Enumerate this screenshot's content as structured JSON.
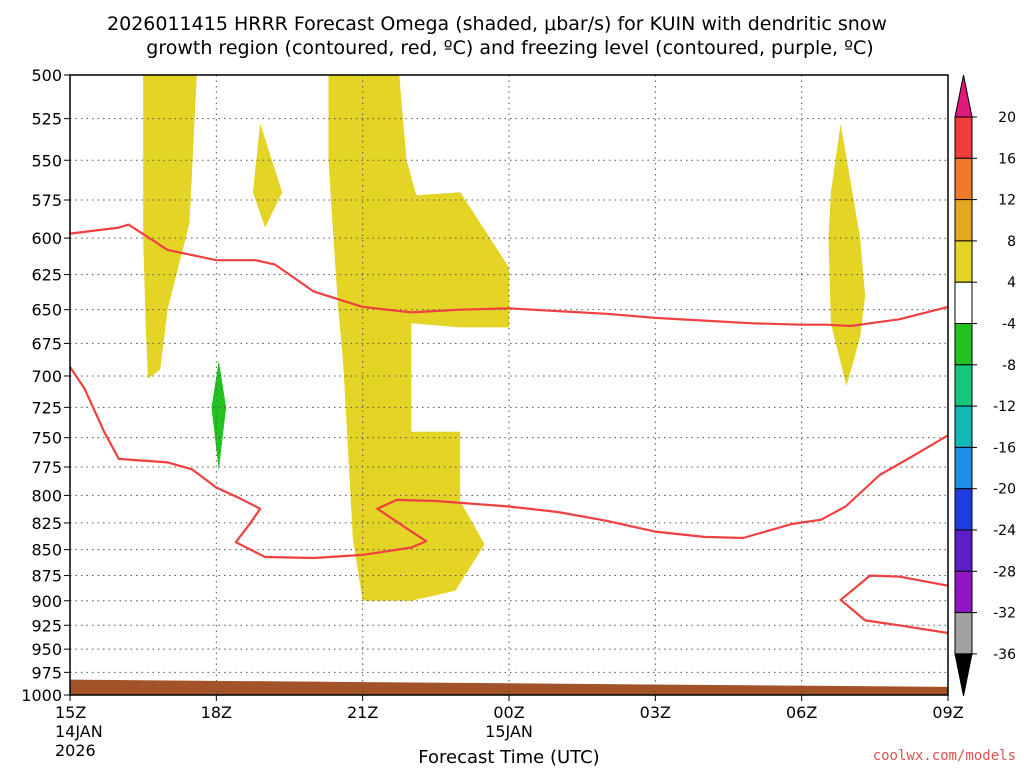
{
  "chart_data": {
    "type": "contour",
    "title_line1": "2026011415 HRRR Forecast Omega (shaded, μbar/s) for KUIN with dendritic snow",
    "title_line2": "growth region (contoured, red, ºC) and freezing level (contoured, purple, ºC)",
    "xlabel": "Forecast Time (UTC)",
    "credit": "coolwx.com/models",
    "x_range_hours": [
      0,
      18
    ],
    "x_ticks": [
      {
        "hour": 0,
        "label": "15Z",
        "sub1": "14JAN",
        "sub2": "2026"
      },
      {
        "hour": 3,
        "label": "18Z",
        "sub1": "",
        "sub2": ""
      },
      {
        "hour": 6,
        "label": "21Z",
        "sub1": "",
        "sub2": ""
      },
      {
        "hour": 9,
        "label": "00Z",
        "sub1": "15JAN",
        "sub2": ""
      },
      {
        "hour": 12,
        "label": "03Z",
        "sub1": "",
        "sub2": ""
      },
      {
        "hour": 15,
        "label": "06Z",
        "sub1": "",
        "sub2": ""
      },
      {
        "hour": 18,
        "label": "09Z",
        "sub1": "",
        "sub2": ""
      }
    ],
    "y_range_hpa": [
      500,
      1000
    ],
    "y_ticks": [
      500,
      525,
      550,
      575,
      600,
      625,
      650,
      675,
      700,
      725,
      750,
      775,
      800,
      825,
      850,
      875,
      900,
      925,
      950,
      975,
      1000
    ],
    "grid": true,
    "colorbar": {
      "labels": [
        "20",
        "16",
        "12",
        "8",
        "4",
        "-4",
        "-8",
        "-12",
        "-16",
        "-20",
        "-24",
        "-28",
        "-32",
        "-36"
      ],
      "bins": [
        "#f23b3b",
        "#f07a2a",
        "#e6a81f",
        "#e3d425",
        "#ffffff",
        "#22c31e",
        "#14c87c",
        "#12b8b8",
        "#1e8fe6",
        "#1f3ce0",
        "#5a20c8",
        "#8f18c4",
        "#a2a2a2"
      ],
      "top_color": "#e0197a",
      "bottom_color": "#000000"
    },
    "omega_regions": [
      {
        "color": "#e3d425",
        "value_range": [
          4,
          8
        ],
        "points": [
          [
            1.6,
            500
          ],
          [
            2.6,
            500
          ],
          [
            2.45,
            590
          ],
          [
            2.0,
            650
          ],
          [
            1.85,
            695
          ],
          [
            1.6,
            702
          ],
          [
            1.55,
            660
          ],
          [
            1.5,
            600
          ],
          [
            1.5,
            500
          ]
        ]
      },
      {
        "color": "#e3d425",
        "value_range": [
          4,
          8
        ],
        "points": [
          [
            3.9,
            528
          ],
          [
            4.35,
            570
          ],
          [
            4.0,
            593
          ],
          [
            3.75,
            570
          ]
        ]
      },
      {
        "color": "#e3d425",
        "value_range": [
          4,
          8
        ],
        "points": [
          [
            5.9,
            500
          ],
          [
            6.75,
            500
          ],
          [
            6.9,
            550
          ],
          [
            7.1,
            572
          ],
          [
            8.0,
            570
          ],
          [
            9.0,
            620
          ],
          [
            9.0,
            663
          ],
          [
            8.0,
            663
          ],
          [
            7.0,
            660
          ],
          [
            7.0,
            745
          ],
          [
            8.0,
            745
          ],
          [
            8.0,
            805
          ],
          [
            8.5,
            845
          ],
          [
            7.9,
            890
          ],
          [
            7.0,
            900
          ],
          [
            6.0,
            900
          ],
          [
            5.8,
            840
          ],
          [
            5.7,
            760
          ],
          [
            5.6,
            690
          ],
          [
            5.5,
            650
          ],
          [
            5.4,
            600
          ],
          [
            5.3,
            550
          ],
          [
            5.3,
            500
          ]
        ]
      },
      {
        "color": "#e3d425",
        "value_range": [
          4,
          8
        ],
        "points": [
          [
            15.8,
            528
          ],
          [
            16.2,
            600
          ],
          [
            16.3,
            640
          ],
          [
            16.2,
            670
          ],
          [
            15.92,
            708
          ],
          [
            15.6,
            660
          ],
          [
            15.55,
            600
          ],
          [
            15.6,
            570
          ]
        ]
      },
      {
        "color": "#22c31e",
        "value_range": [
          -8,
          -4
        ],
        "points": [
          [
            3.05,
            688
          ],
          [
            3.2,
            725
          ],
          [
            3.05,
            778
          ],
          [
            2.9,
            725
          ]
        ]
      }
    ],
    "dgz_contours": [
      {
        "color": "#f04040",
        "points": [
          [
            0,
            597
          ],
          [
            1.0,
            593
          ],
          [
            1.2,
            591
          ],
          [
            2.0,
            608
          ],
          [
            3.0,
            615
          ],
          [
            3.8,
            615
          ],
          [
            4.2,
            618
          ],
          [
            5.0,
            637
          ],
          [
            6.0,
            648
          ],
          [
            7.0,
            652
          ],
          [
            8.0,
            650
          ],
          [
            9.0,
            649
          ],
          [
            10.0,
            651
          ],
          [
            11.0,
            653
          ],
          [
            12.0,
            656
          ],
          [
            13.0,
            658
          ],
          [
            14.0,
            660
          ],
          [
            15.0,
            661
          ],
          [
            15.5,
            661
          ],
          [
            16.0,
            662
          ],
          [
            17.0,
            657
          ],
          [
            18.0,
            648
          ]
        ]
      },
      {
        "color": "#f04040",
        "points": [
          [
            0,
            693
          ],
          [
            0.3,
            710
          ],
          [
            0.7,
            745
          ],
          [
            1.0,
            768
          ],
          [
            2.0,
            771
          ],
          [
            2.5,
            777
          ],
          [
            3.0,
            793
          ],
          [
            3.5,
            803
          ],
          [
            3.9,
            812
          ],
          [
            3.7,
            825
          ],
          [
            3.4,
            843
          ],
          [
            4.0,
            857
          ],
          [
            5.0,
            858
          ],
          [
            6.0,
            855
          ],
          [
            7.0,
            848
          ],
          [
            7.3,
            842
          ],
          [
            6.8,
            827
          ],
          [
            6.3,
            812
          ],
          [
            6.7,
            804
          ],
          [
            7.5,
            805
          ],
          [
            9.0,
            810
          ],
          [
            10.0,
            815
          ],
          [
            11.0,
            823
          ],
          [
            12.0,
            833
          ],
          [
            13.0,
            838
          ],
          [
            13.8,
            839
          ],
          [
            14.8,
            826
          ],
          [
            15.4,
            822
          ],
          [
            15.9,
            810
          ],
          [
            16.6,
            782
          ],
          [
            17.3,
            765
          ],
          [
            18.0,
            748
          ]
        ]
      },
      {
        "color": "#f04040",
        "points": [
          [
            18.0,
            885
          ],
          [
            17.0,
            876
          ],
          [
            16.4,
            875
          ],
          [
            15.8,
            899
          ],
          [
            16.3,
            920
          ],
          [
            17.0,
            925
          ],
          [
            18.0,
            933
          ]
        ]
      }
    ],
    "terrain": {
      "color": "#a2532a",
      "from_hpa": [
        983,
        991
      ]
    }
  }
}
